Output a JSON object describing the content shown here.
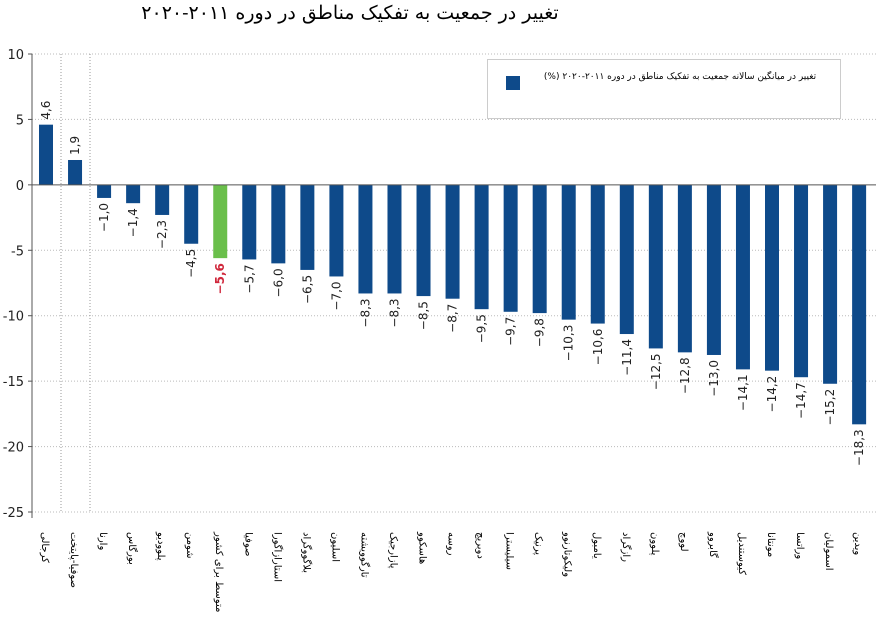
{
  "chart_data": {
    "type": "bar",
    "title": "تغییر در جمعیت به تفکیک مناطق در دوره ۲۰۱۱-۲۰۲۰",
    "legend": {
      "label": "تغییر در میانگین سالانه جمعیت به تفکیک مناطق در دوره ۲۰۱۱-۲۰۲۰ (%)",
      "placement": "top-right"
    },
    "ylim": [
      -25,
      10
    ],
    "yticks": [
      10,
      5,
      0,
      -5,
      -10,
      -15,
      -20,
      -25
    ],
    "grid": true,
    "highlight_index": 6,
    "colors": {
      "bar": "#0e4a8a",
      "highlight": "#6abf4b",
      "highlight_label": "#d0283c"
    },
    "categories": [
      "کرجالی",
      "صوفیا-پایتخت",
      "وارنا",
      "بورگاس",
      "پلوودیو",
      "شومن",
      "متوسط برای کشور",
      "صوفیا",
      "استارازاگورا",
      "بلاگووگراد",
      "اسلیون",
      "تارگوویشته",
      "پازارجیک",
      "هاسکوو",
      "روسه",
      "دوبریچ",
      "سیلیسترا",
      "پرنیک",
      "ولیکوتارنوو",
      "یامبول",
      "رازگراد",
      "پلوون",
      "لووچ",
      "گابروو",
      "کیوستندیل",
      "مونتانا",
      "وراتسا",
      "اسمولیان",
      "ویدین"
    ],
    "values": [
      4.6,
      1.9,
      -1.0,
      -1.4,
      -2.3,
      -4.5,
      -5.6,
      -5.7,
      -6.0,
      -6.5,
      -7.0,
      -8.3,
      -8.3,
      -8.5,
      -8.7,
      -9.5,
      -9.7,
      -9.8,
      -10.3,
      -10.6,
      -11.4,
      -12.5,
      -12.8,
      -13.0,
      -14.1,
      -14.2,
      -14.7,
      -15.2,
      -18.3
    ],
    "value_labels": [
      "4,6",
      "1,9",
      "−1,0",
      "−1,4",
      "−2,3",
      "−4,5",
      "−5,6",
      "−5,7",
      "−6,0",
      "−6,5",
      "−7,0",
      "−8,3",
      "−8,3",
      "−8,5",
      "−8,7",
      "−9,5",
      "−9,7",
      "−9,8",
      "−10,3",
      "−10,6",
      "−11,4",
      "−12,5",
      "−12,8",
      "−13,0",
      "−14,1",
      "−14,2",
      "−14,7",
      "−15,2",
      "−18,3"
    ]
  }
}
